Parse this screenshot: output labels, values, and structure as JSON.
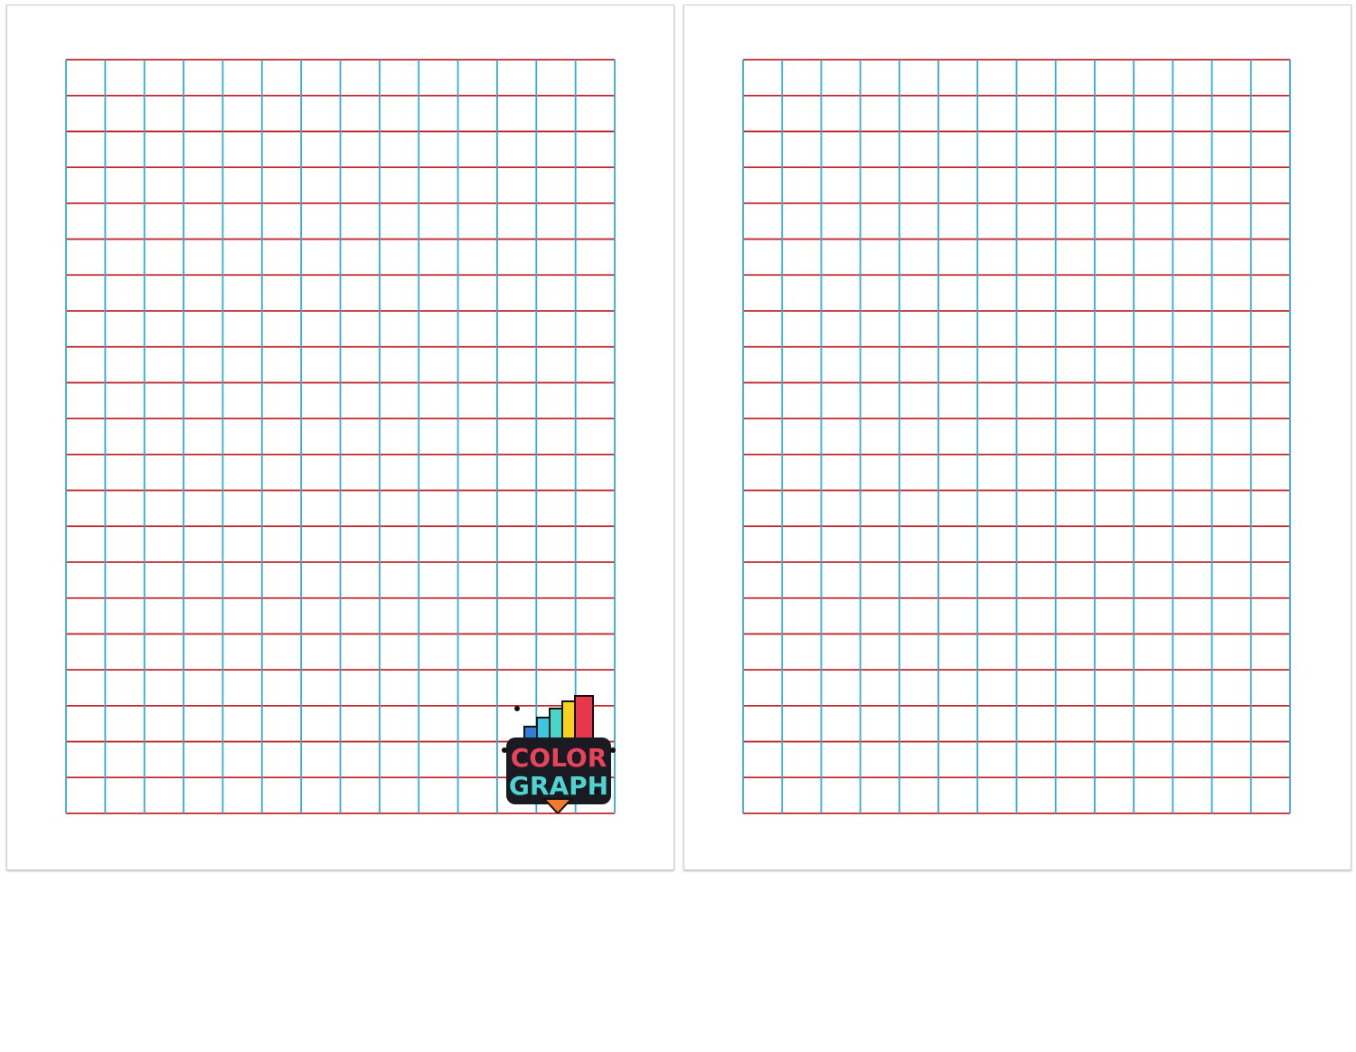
{
  "pages": [
    {
      "id": "left",
      "grid": {
        "columns": 14,
        "rows": 21
      },
      "has_logo": true
    },
    {
      "id": "right",
      "grid": {
        "columns": 14,
        "rows": 21
      },
      "has_logo": false
    }
  ],
  "colors": {
    "vertical_lines": "#35acd6",
    "horizontal_lines": "#c0272d",
    "page_border": "#cfcfcf"
  },
  "logo": {
    "line1": "COLOR",
    "line2": "GRAPH"
  }
}
